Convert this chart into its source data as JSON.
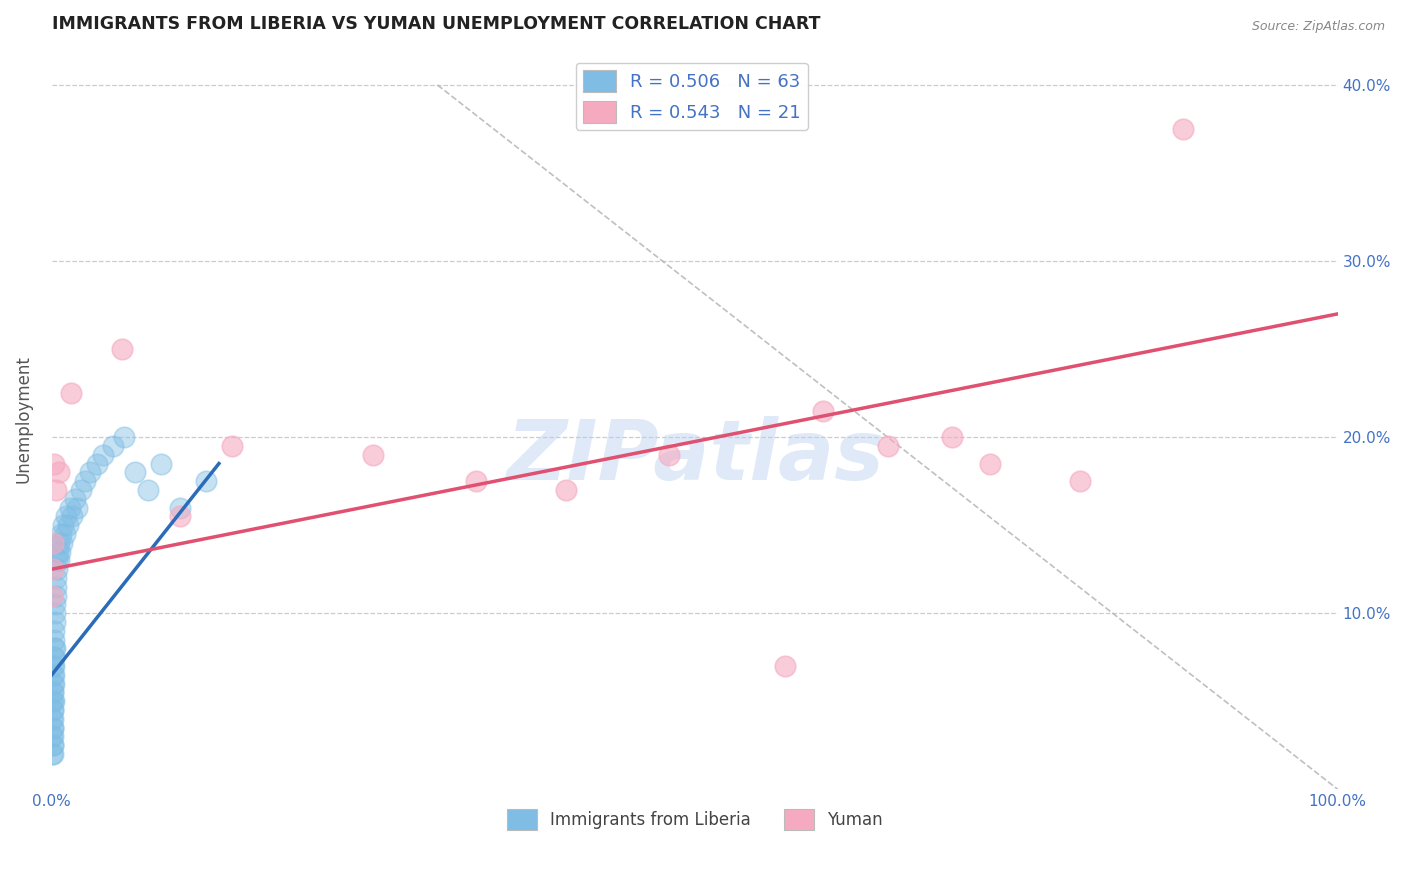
{
  "title": "IMMIGRANTS FROM LIBERIA VS YUMAN UNEMPLOYMENT CORRELATION CHART",
  "source": "Source: ZipAtlas.com",
  "ylabel": "Unemployment",
  "watermark": "ZIPatlas",
  "legend": [
    {
      "label": "R = 0.506   N = 63",
      "color": "#aec6e8"
    },
    {
      "label": "R = 0.543   N = 21",
      "color": "#f4b8c8"
    }
  ],
  "legend_labels_bottom": [
    "Immigrants from Liberia",
    "Yuman"
  ],
  "blue_scatter_x": [
    0.05,
    0.05,
    0.05,
    0.05,
    0.07,
    0.07,
    0.08,
    0.08,
    0.09,
    0.1,
    0.1,
    0.1,
    0.1,
    0.11,
    0.11,
    0.12,
    0.12,
    0.13,
    0.13,
    0.14,
    0.15,
    0.15,
    0.16,
    0.17,
    0.18,
    0.19,
    0.2,
    0.21,
    0.22,
    0.23,
    0.25,
    0.27,
    0.3,
    0.33,
    0.36,
    0.4,
    0.44,
    0.48,
    0.53,
    0.58,
    0.65,
    0.72,
    0.8,
    0.89,
    1.0,
    1.1,
    1.25,
    1.4,
    1.6,
    1.8,
    2.0,
    2.3,
    2.6,
    3.0,
    3.5,
    4.0,
    4.8,
    5.6,
    6.5,
    7.5,
    8.5,
    10.0,
    12.0
  ],
  "blue_scatter_y": [
    2.0,
    3.0,
    4.0,
    5.0,
    2.5,
    3.5,
    2.0,
    4.5,
    3.0,
    2.5,
    4.0,
    5.5,
    6.0,
    3.5,
    5.0,
    4.5,
    6.5,
    5.5,
    7.0,
    6.0,
    5.0,
    7.5,
    6.5,
    7.0,
    8.0,
    7.5,
    8.5,
    9.0,
    8.0,
    9.5,
    10.0,
    10.5,
    11.0,
    11.5,
    12.0,
    12.5,
    13.0,
    13.5,
    13.0,
    14.0,
    13.5,
    14.5,
    14.0,
    15.0,
    14.5,
    15.5,
    15.0,
    16.0,
    15.5,
    16.5,
    16.0,
    17.0,
    17.5,
    18.0,
    18.5,
    19.0,
    19.5,
    20.0,
    18.0,
    17.0,
    18.5,
    16.0,
    17.5
  ],
  "pink_scatter_x": [
    0.05,
    0.08,
    0.12,
    0.2,
    0.35,
    0.55,
    1.5,
    5.5,
    10.0,
    14.0,
    25.0,
    33.0,
    48.0,
    57.0,
    65.0,
    73.0,
    80.0,
    88.0,
    40.0,
    60.0,
    70.0
  ],
  "pink_scatter_y": [
    11.0,
    12.5,
    14.0,
    18.5,
    17.0,
    18.0,
    22.5,
    25.0,
    15.5,
    19.5,
    19.0,
    17.5,
    19.0,
    7.0,
    19.5,
    18.5,
    17.5,
    37.5,
    17.0,
    21.5,
    20.0
  ],
  "blue_line_x": [
    0.0,
    13.0
  ],
  "blue_line_y": [
    6.5,
    18.5
  ],
  "pink_line_x": [
    0.0,
    100.0
  ],
  "pink_line_y": [
    12.5,
    27.0
  ],
  "diag_line_x": [
    30.0,
    100.0
  ],
  "diag_line_y": [
    40.0,
    0.0
  ],
  "xlim": [
    0.0,
    100.0
  ],
  "ylim": [
    0.0,
    42.0
  ],
  "title_color": "#222222",
  "title_fontsize": 12.5,
  "blue_color": "#7fbde4",
  "pink_color": "#f5aac0",
  "blue_line_color": "#2b6cb8",
  "pink_line_color": "#e05070",
  "diag_color": "#b0b0b0",
  "grid_color": "#cccccc",
  "watermark_color": "#b8d0f0",
  "axis_label_color": "#4472c4",
  "source_color": "#888888"
}
